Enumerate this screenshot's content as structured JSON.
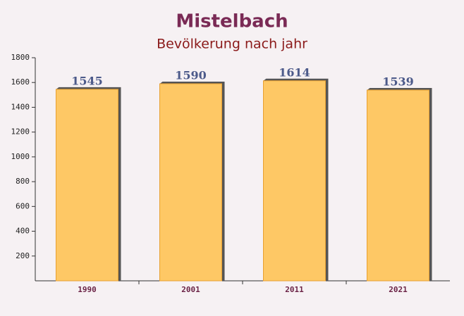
{
  "chart_data": {
    "type": "bar",
    "title": "Mistelbach",
    "subtitle": "Bevölkerung nach jahr",
    "categories": [
      "1990",
      "2001",
      "2011",
      "2021"
    ],
    "values": [
      1545,
      1590,
      1614,
      1539
    ],
    "color": "#fec865",
    "ylim": [
      0,
      1800
    ],
    "yticks": [
      200,
      400,
      600,
      800,
      1000,
      1200,
      1400,
      1600,
      1800
    ],
    "grid": false
  }
}
